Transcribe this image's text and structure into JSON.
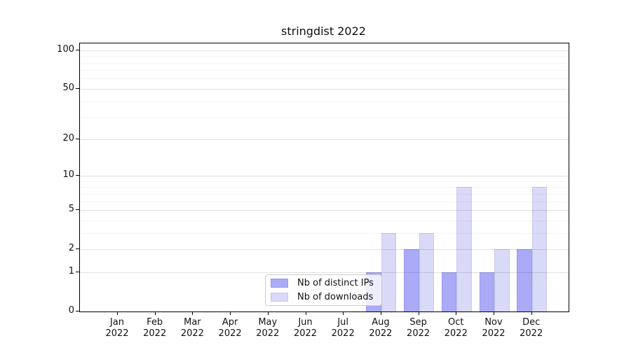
{
  "figure": {
    "background": "#ffffff"
  },
  "chart_data": {
    "type": "bar",
    "title": "stringdist 2022",
    "categories": [
      "Jan",
      "Feb",
      "Mar",
      "Apr",
      "May",
      "Jun",
      "Jul",
      "Aug",
      "Sep",
      "Oct",
      "Nov",
      "Dec"
    ],
    "category_year": "2022",
    "series": [
      {
        "name": "Nb of distinct IPs",
        "color": "#aaaaf7",
        "edge_color": "#9a9aee",
        "values": [
          0,
          0,
          0,
          0,
          0,
          0,
          0,
          1,
          2,
          1,
          1,
          2
        ]
      },
      {
        "name": "Nb of downloads",
        "color": "#d9d9f8",
        "edge_color": "#c9c9f0",
        "values": [
          0,
          0,
          0,
          0,
          0,
          0,
          0,
          3,
          3,
          8,
          2,
          8
        ]
      }
    ],
    "xlabel": "",
    "ylabel": "",
    "yscale": "log1p",
    "ylim": [
      0,
      112
    ],
    "y_major_ticks": [
      0,
      1,
      2,
      5,
      10,
      20,
      50,
      100
    ],
    "y_minor_ticks": [
      3,
      4,
      6,
      7,
      8,
      9,
      30,
      40,
      60,
      70,
      80,
      90
    ],
    "grid": "horizontal-over-bars",
    "legend": {
      "position": "inside-bottom-center",
      "entries": [
        "Nb of distinct IPs",
        "Nb of downloads"
      ]
    }
  },
  "colors": {
    "grid_major": "rgba(0,0,0,0.12)",
    "grid_minor": "rgba(0,0,0,0.045)",
    "spine": "#000000",
    "text": "#111111",
    "legend_border": "#cccccc",
    "legend_background": "rgba(255,255,255,0.8)"
  }
}
